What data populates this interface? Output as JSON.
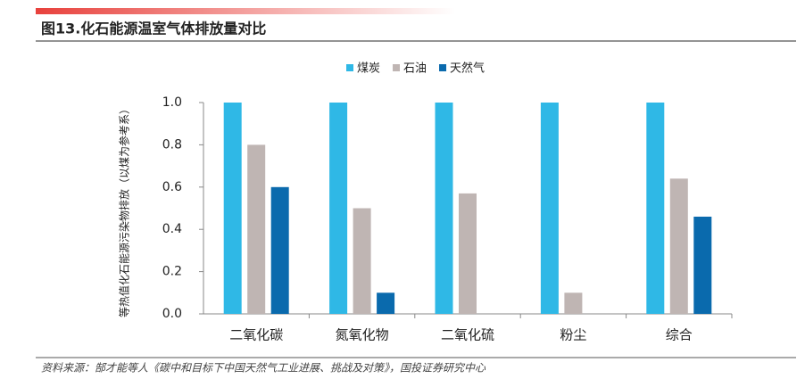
{
  "chart_data": {
    "type": "bar",
    "title": "图13.化石能源温室气体排放量对比",
    "y_label": "等热值化石能源污染物排放（以煤为参考系）",
    "categories": [
      "二氧化碳",
      "氮氧化物",
      "二氧化硫",
      "粉尘",
      "综合"
    ],
    "series": [
      {
        "name": "煤炭",
        "color": "#2fb8e6",
        "values": [
          1.0,
          1.0,
          1.0,
          1.0,
          1.0
        ]
      },
      {
        "name": "石油",
        "color": "#bfb5b3",
        "values": [
          0.8,
          0.5,
          0.57,
          0.1,
          0.64
        ]
      },
      {
        "name": "天然气",
        "color": "#0a6aad",
        "values": [
          0.6,
          0.1,
          0,
          0,
          0.46
        ]
      }
    ],
    "ylim": [
      0,
      1
    ],
    "yticks": [
      {
        "value": 0,
        "label": "0.0"
      },
      0.2,
      0.4,
      0.6,
      0.8,
      {
        "value": 1,
        "label": "1.0"
      }
    ],
    "legend": "top",
    "source": "资料来源：郜才能等人《碳中和目标下中国天然气工业进展、挑战及对策》，国投证券研究中心"
  }
}
